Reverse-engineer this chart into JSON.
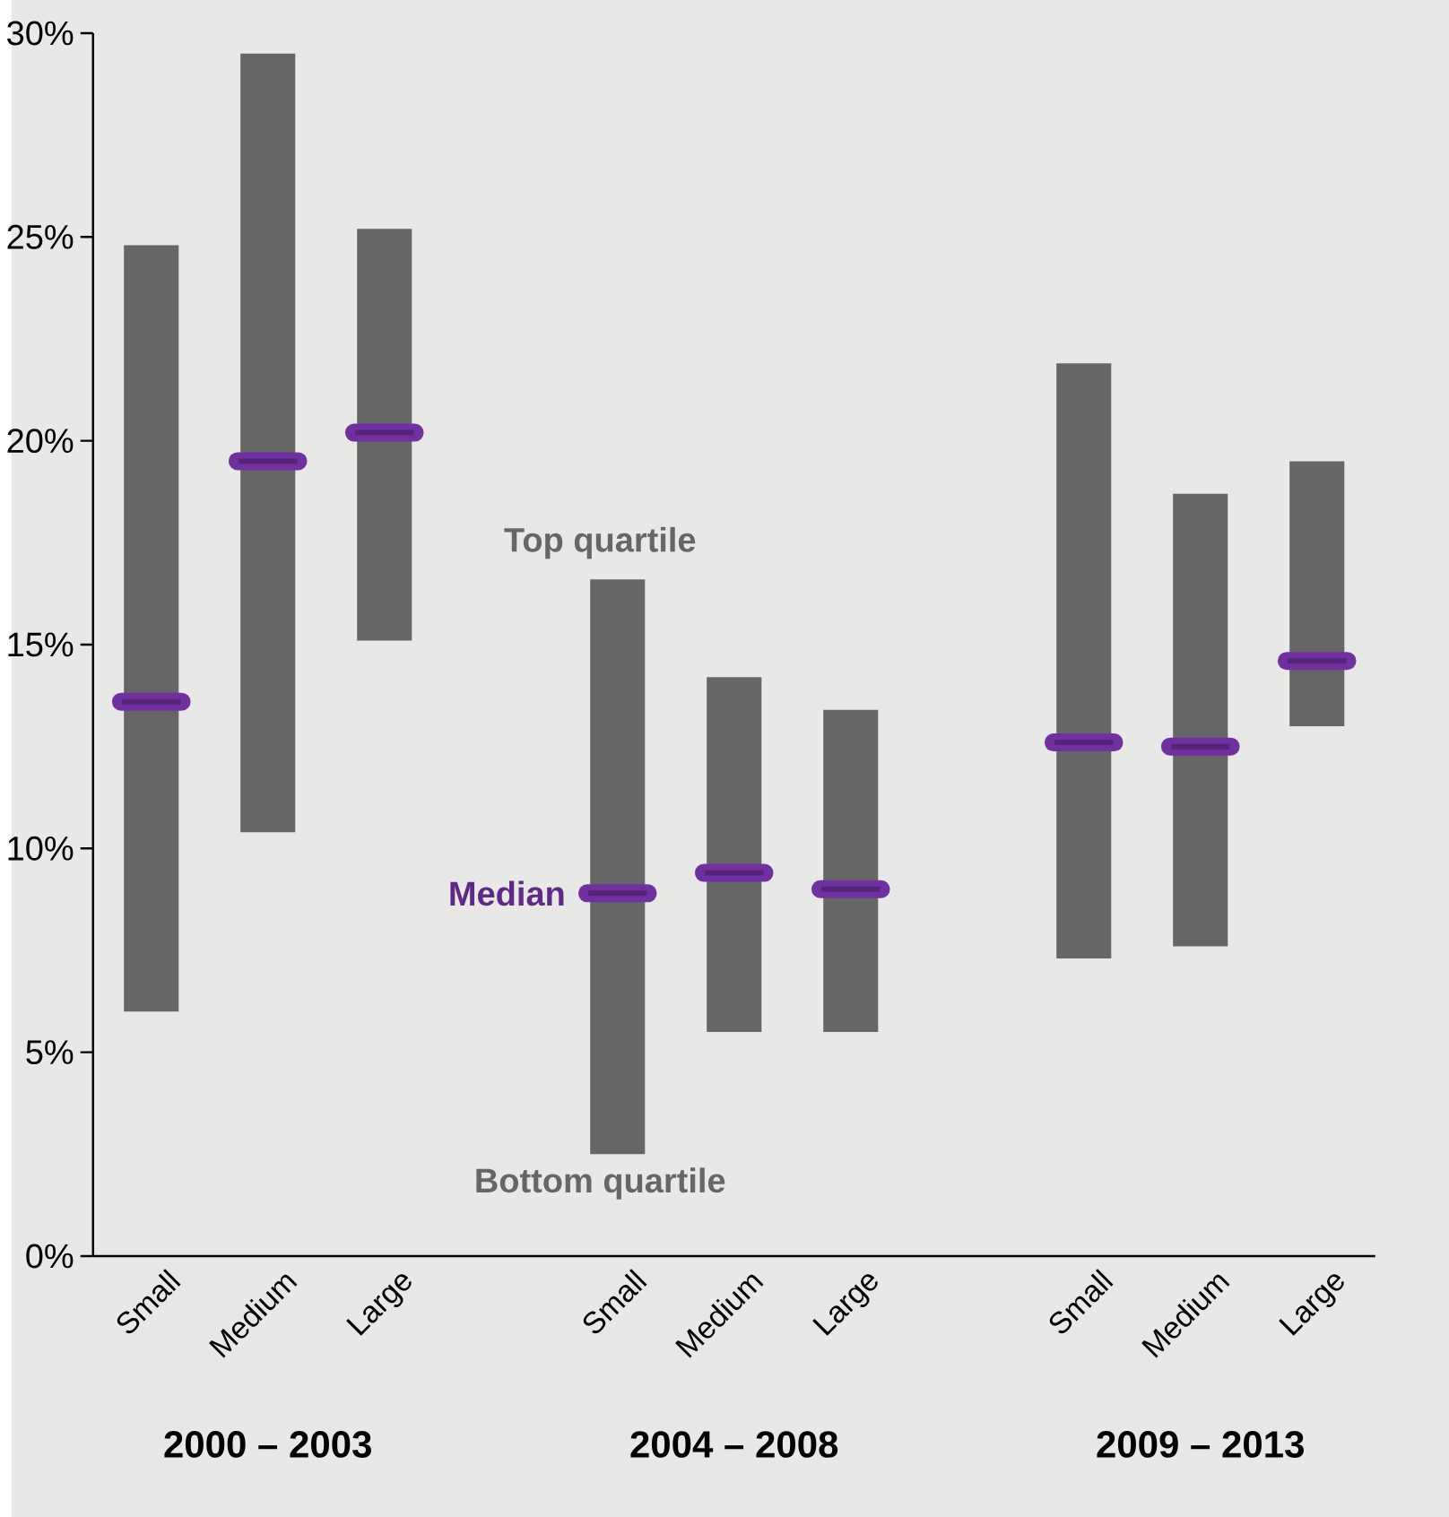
{
  "chart_data": {
    "type": "box",
    "categories": [
      "Small",
      "Medium",
      "Large",
      null,
      "Small",
      "Medium",
      "Large",
      null,
      "Small",
      "Medium",
      "Large"
    ],
    "color": "#666666",
    "boxes": [
      {
        "low": 6.0,
        "q1": 6.0,
        "median": 13.6,
        "q3": 24.8,
        "high": 24.8
      },
      {
        "low": 10.4,
        "q1": 10.4,
        "median": 19.5,
        "q3": 29.5,
        "high": 29.5
      },
      {
        "low": 15.1,
        "q1": 15.1,
        "median": 20.2,
        "q3": 25.2,
        "high": 25.2
      },
      null,
      {
        "low": 2.5,
        "q1": 2.5,
        "median": 8.9,
        "q3": 16.6,
        "high": 16.6
      },
      {
        "low": 5.5,
        "q1": 5.5,
        "median": 9.4,
        "q3": 14.2,
        "high": 14.2
      },
      {
        "low": 5.5,
        "q1": 5.5,
        "median": 9.0,
        "q3": 13.4,
        "high": 13.4
      },
      null,
      {
        "low": 7.3,
        "q1": 7.3,
        "median": 12.6,
        "q3": 21.9,
        "high": 21.9
      },
      {
        "low": 7.6,
        "q1": 7.6,
        "median": 12.5,
        "q3": 18.7,
        "high": 18.7
      },
      {
        "low": 13.0,
        "q1": 13.0,
        "median": 14.6,
        "q3": 19.5,
        "high": 19.5
      }
    ],
    "ylim": [
      0,
      30
    ],
    "yticks": [
      {
        "value": 0,
        "label": "0%"
      },
      {
        "value": 5,
        "label": "5%"
      },
      {
        "value": 10,
        "label": "10%"
      },
      {
        "value": 15,
        "label": "15%"
      },
      {
        "value": 20,
        "label": "20%"
      },
      {
        "value": 25,
        "label": "25%"
      },
      {
        "value": 30,
        "label": "30%"
      }
    ],
    "annotations": [
      "Top quartile",
      "Median",
      "Bottom quartile",
      "2000 – 2003",
      "2004 – 2008",
      "2009 – 2013"
    ]
  }
}
